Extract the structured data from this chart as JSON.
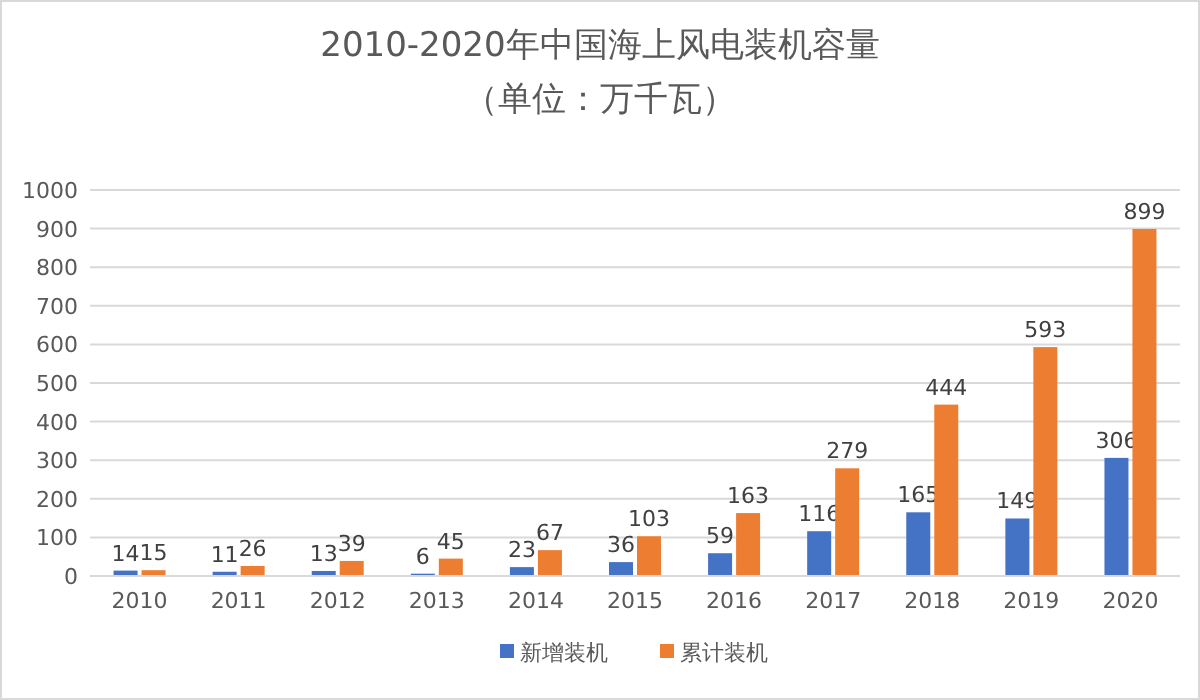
{
  "chart_data": {
    "type": "bar",
    "title": "2010-2020年中国海上风电装机容量",
    "subtitle": "（单位：万千瓦）",
    "categories": [
      "2010",
      "2011",
      "2012",
      "2013",
      "2014",
      "2015",
      "2016",
      "2017",
      "2018",
      "2019",
      "2020"
    ],
    "series": [
      {
        "name": "新增装机",
        "color": "#4472c4",
        "values": [
          14,
          11,
          13,
          6,
          23,
          36,
          59,
          116,
          165,
          149,
          306
        ]
      },
      {
        "name": "累计装机",
        "color": "#ed7d31",
        "values": [
          15,
          26,
          39,
          45,
          67,
          103,
          163,
          279,
          444,
          593,
          899
        ]
      }
    ],
    "ylim": [
      0,
      1000
    ],
    "yticks": [
      0,
      100,
      200,
      300,
      400,
      500,
      600,
      700,
      800,
      900,
      1000
    ],
    "grid": "y",
    "legend": "bottom",
    "data_labels": true
  }
}
